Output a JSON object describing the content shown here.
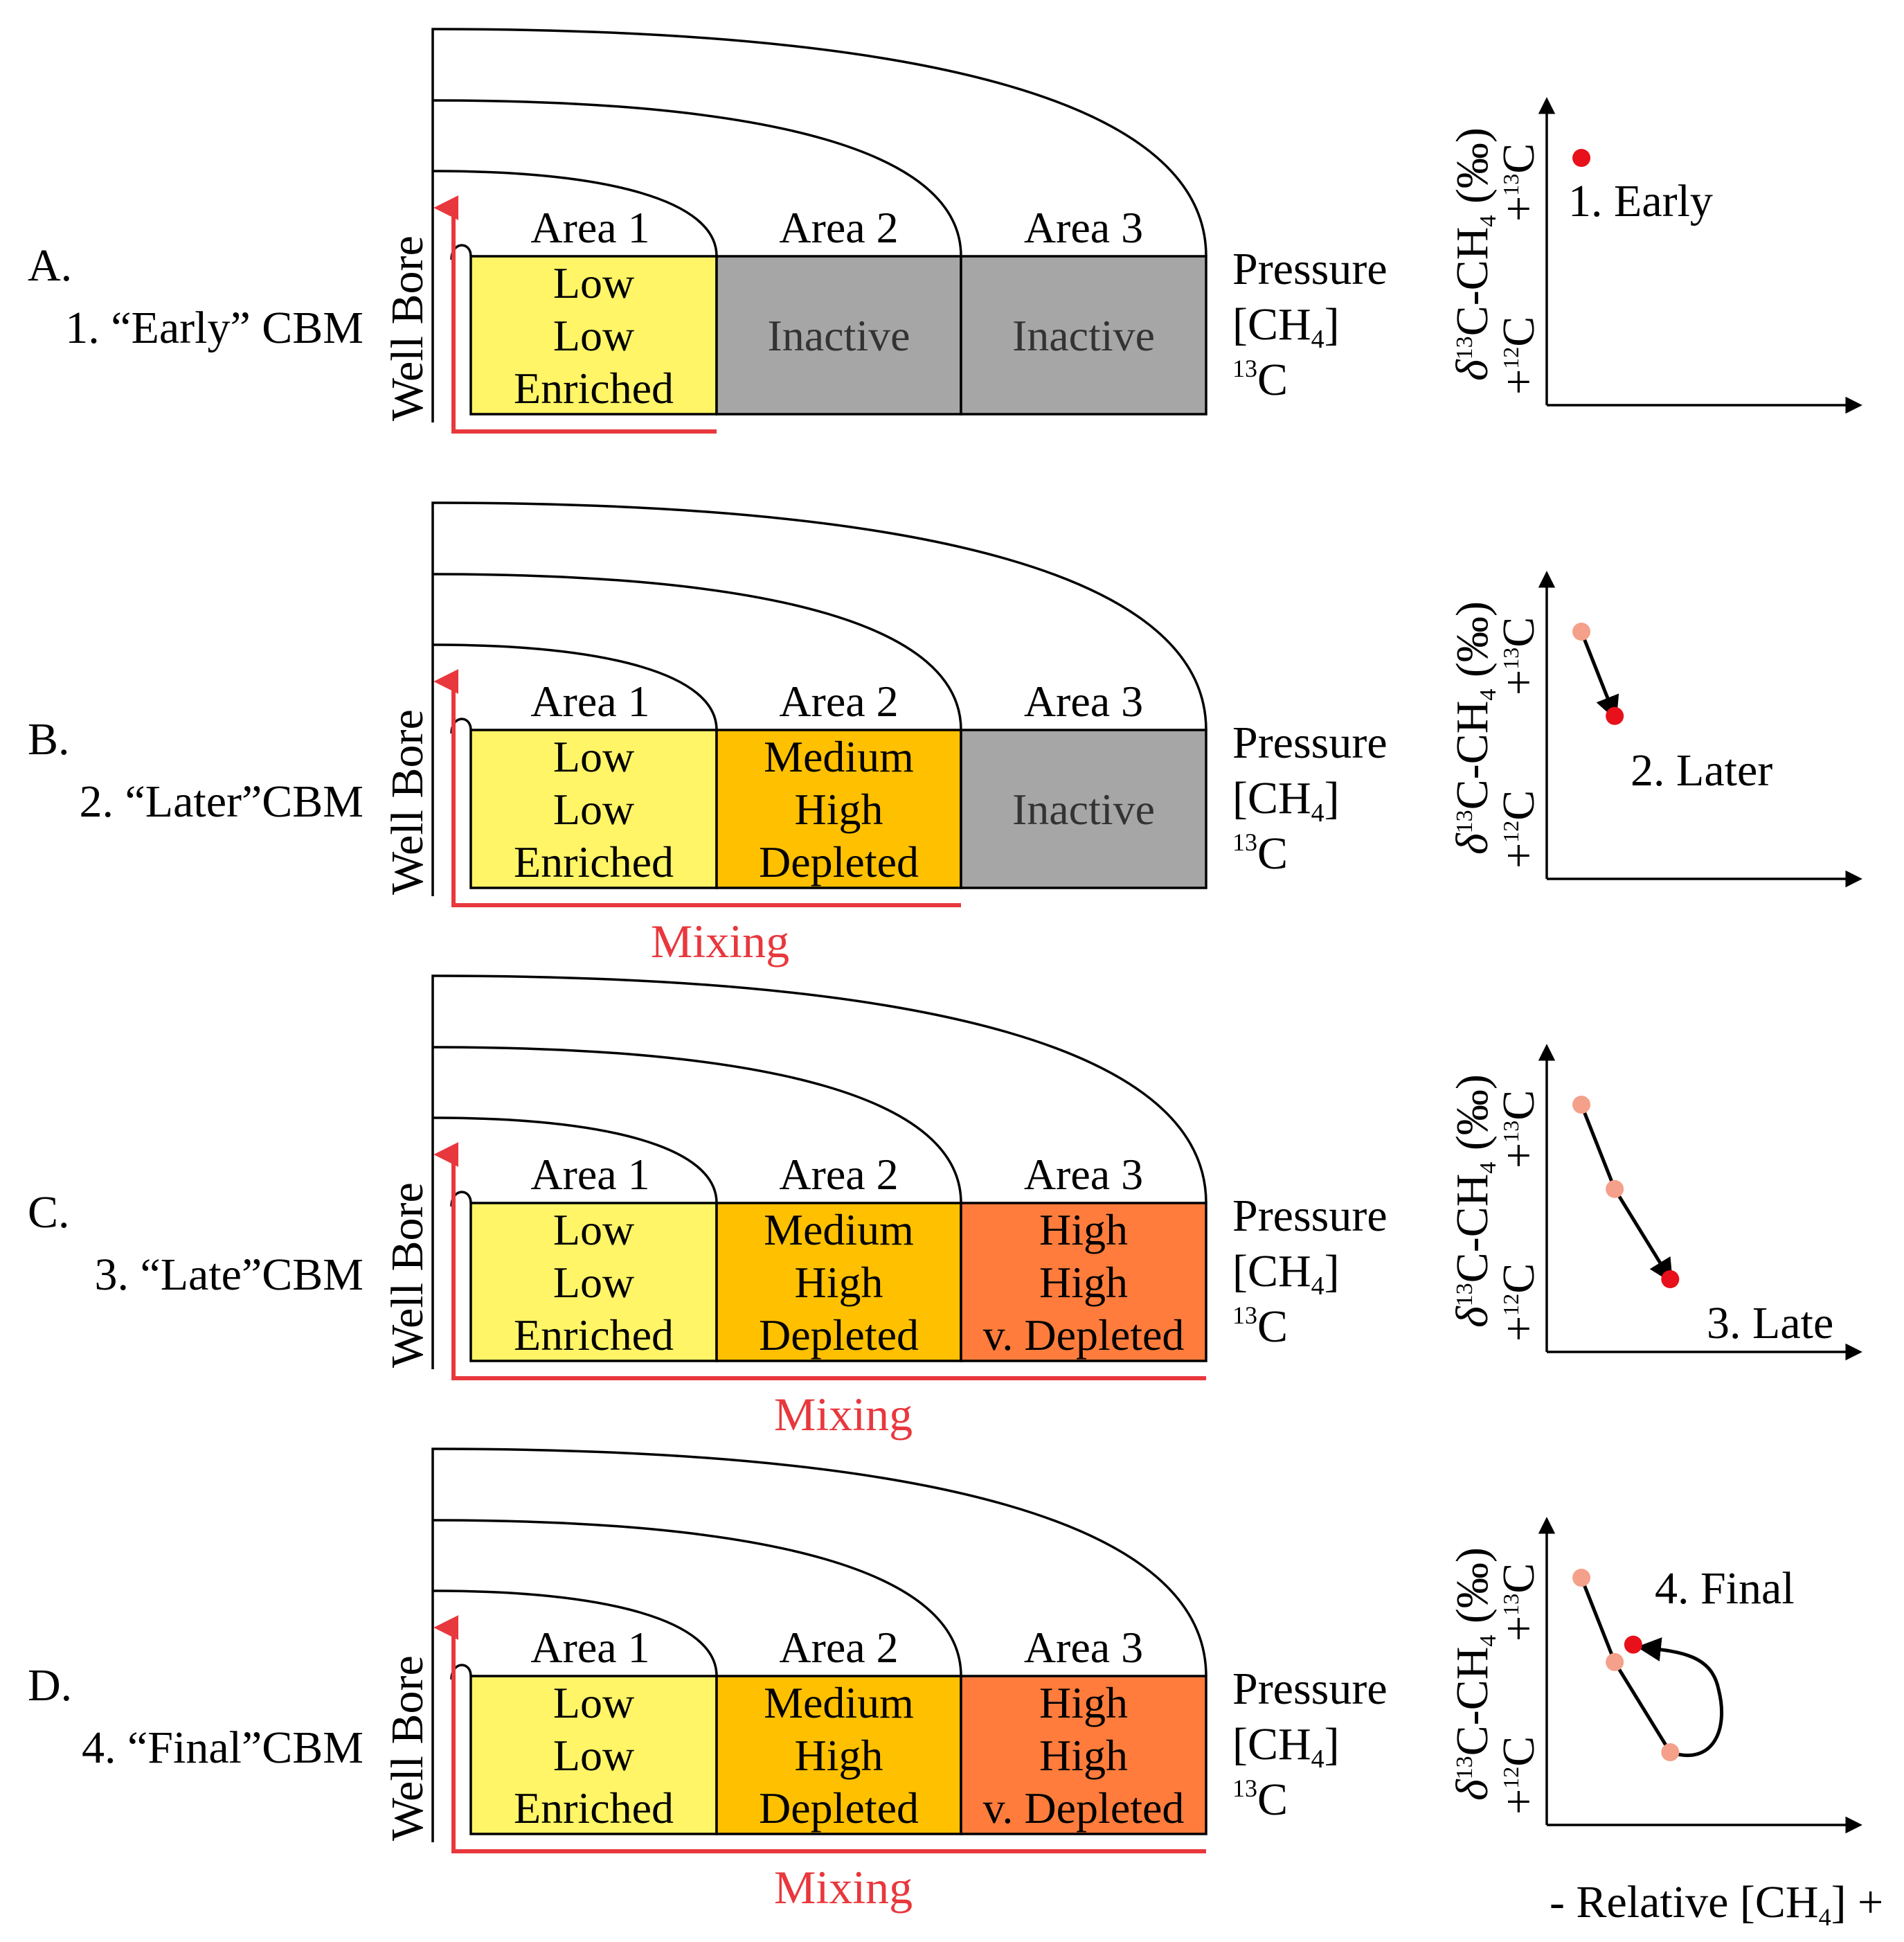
{
  "title_meta": "CBM isotopic evolution diagram",
  "colors": {
    "low": "#fff566",
    "medium": "#ffc000",
    "high": "#ff7c3c",
    "inactive": "#a6a6a6",
    "red": "#e8383d",
    "point_current": "#e8101a",
    "point_past": "#f4a08a"
  },
  "panels": [
    {
      "letter": "A.",
      "stage": "1. “Early” CBM",
      "well_bore": "Well Bore",
      "areas": [
        "Area 1",
        "Area 2",
        "Area 3"
      ],
      "row_labels": {
        "pressure": "Pressure",
        "ch4_open": "[CH",
        "ch4_sub": "4",
        "ch4_close": "]",
        "c13_sup": "13",
        "c13": "C"
      },
      "cells": [
        {
          "state": "low",
          "lines": [
            "Low",
            "Low",
            "Enriched"
          ]
        },
        {
          "state": "inactive",
          "lines": [
            "Inactive"
          ]
        },
        {
          "state": "inactive",
          "lines": [
            "Inactive"
          ]
        }
      ],
      "mixing": "",
      "mixing_extent": 1,
      "plot": {
        "ylabel_prefix": "δ",
        "ylabel_sup": "13",
        "ylabel_mid": "C-CH",
        "ylabel_sub": "4",
        "ylabel_suffix": " (‰)",
        "y_top": "+",
        "y_top_sup": "13",
        "y_top_c": "C",
        "y_bottom": "+",
        "y_bottom_sup": "12",
        "y_bottom_c": "C",
        "points": [
          {
            "x": 0.12,
            "y": 0.85,
            "current": true
          }
        ],
        "path": "none",
        "point_label": "1. Early"
      }
    },
    {
      "letter": "B.",
      "stage": "2. “Later”CBM",
      "well_bore": "Well Bore",
      "areas": [
        "Area 1",
        "Area 2",
        "Area 3"
      ],
      "row_labels": {
        "pressure": "Pressure",
        "ch4_open": "[CH",
        "ch4_sub": "4",
        "ch4_close": "]",
        "c13_sup": "13",
        "c13": "C"
      },
      "cells": [
        {
          "state": "low",
          "lines": [
            "Low",
            "Low",
            "Enriched"
          ]
        },
        {
          "state": "medium",
          "lines": [
            "Medium",
            "High",
            "Depleted"
          ]
        },
        {
          "state": "inactive",
          "lines": [
            "Inactive"
          ]
        }
      ],
      "mixing": "Mixing",
      "mixing_extent": 2,
      "plot": {
        "ylabel_prefix": "δ",
        "ylabel_sup": "13",
        "ylabel_mid": "C-CH",
        "ylabel_sub": "4",
        "ylabel_suffix": " (‰)",
        "y_top": "+",
        "y_top_sup": "13",
        "y_top_c": "C",
        "y_bottom": "+",
        "y_bottom_sup": "12",
        "y_bottom_c": "C",
        "points": [
          {
            "x": 0.12,
            "y": 0.85,
            "current": false
          },
          {
            "x": 0.3,
            "y": 0.56,
            "current": true
          }
        ],
        "path": "line",
        "point_label": "2. Later"
      }
    },
    {
      "letter": "C.",
      "stage": "3. “Late”CBM",
      "well_bore": "Well Bore",
      "areas": [
        "Area 1",
        "Area 2",
        "Area 3"
      ],
      "row_labels": {
        "pressure": "Pressure",
        "ch4_open": "[CH",
        "ch4_sub": "4",
        "ch4_close": "]",
        "c13_sup": "13",
        "c13": "C"
      },
      "cells": [
        {
          "state": "low",
          "lines": [
            "Low",
            "Low",
            "Enriched"
          ]
        },
        {
          "state": "medium",
          "lines": [
            "Medium",
            "High",
            "Depleted"
          ]
        },
        {
          "state": "high",
          "lines": [
            "High",
            "High",
            "v. Depleted"
          ]
        }
      ],
      "mixing": "Mixing",
      "mixing_extent": 3,
      "plot": {
        "ylabel_prefix": "δ",
        "ylabel_sup": "13",
        "ylabel_mid": "C-CH",
        "ylabel_sub": "4",
        "ylabel_suffix": " (‰)",
        "y_top": "+",
        "y_top_sup": "13",
        "y_top_c": "C",
        "y_bottom": "+",
        "y_bottom_sup": "12",
        "y_bottom_c": "C",
        "points": [
          {
            "x": 0.12,
            "y": 0.85,
            "current": false
          },
          {
            "x": 0.3,
            "y": 0.56,
            "current": false
          },
          {
            "x": 0.6,
            "y": 0.25,
            "current": true
          }
        ],
        "path": "line",
        "point_label": "3. Late"
      }
    },
    {
      "letter": "D.",
      "stage": "4. “Final”CBM",
      "well_bore": "Well Bore",
      "areas": [
        "Area 1",
        "Area 2",
        "Area 3"
      ],
      "row_labels": {
        "pressure": "Pressure",
        "ch4_open": "[CH",
        "ch4_sub": "4",
        "ch4_close": "]",
        "c13_sup": "13",
        "c13": "C"
      },
      "cells": [
        {
          "state": "low",
          "lines": [
            "Low",
            "Low",
            "Enriched"
          ]
        },
        {
          "state": "medium",
          "lines": [
            "Medium",
            "High",
            "Depleted"
          ]
        },
        {
          "state": "high",
          "lines": [
            "High",
            "High",
            "v. Depleted"
          ]
        }
      ],
      "mixing": "Mixing",
      "mixing_extent": 3,
      "plot": {
        "ylabel_prefix": "δ",
        "ylabel_sup": "13",
        "ylabel_mid": "C-CH",
        "ylabel_sub": "4",
        "ylabel_suffix": " (‰)",
        "y_top": "+",
        "y_top_sup": "13",
        "y_top_c": "C",
        "y_bottom": "+",
        "y_bottom_sup": "12",
        "y_bottom_c": "C",
        "points": [
          {
            "x": 0.12,
            "y": 0.85,
            "current": false
          },
          {
            "x": 0.3,
            "y": 0.56,
            "current": false
          },
          {
            "x": 0.6,
            "y": 0.25,
            "current": false
          },
          {
            "x": 0.4,
            "y": 0.62,
            "current": true
          }
        ],
        "path": "loop",
        "point_label": "4. Final"
      }
    }
  ],
  "x_axis_label": {
    "prefix": "- Relative  [CH",
    "sub": "4",
    "suffix": "] +"
  }
}
